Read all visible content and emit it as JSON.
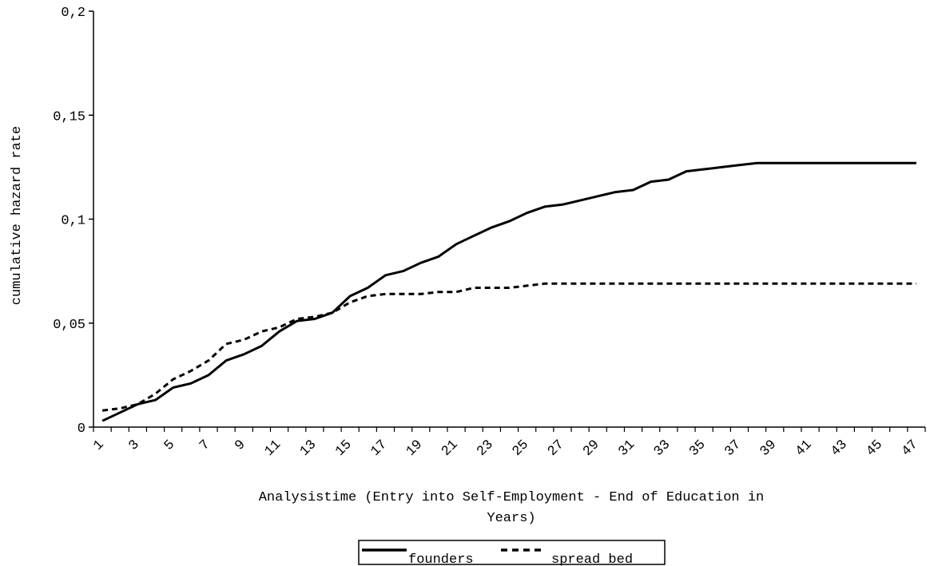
{
  "chart_data": {
    "type": "line",
    "ylabel": "cumulative hazard rate",
    "xlabel_line1": "Analysistime (Entry into Self-Employment - End of Education in",
    "xlabel_line2": "Years)",
    "ylim": [
      0,
      0.2
    ],
    "y_ticks": [
      0,
      0.05,
      0.1,
      0.15,
      0.2
    ],
    "y_tick_labels": [
      "0",
      "0,05",
      "0,1",
      "0,15",
      "0,2"
    ],
    "x": [
      1,
      2,
      3,
      4,
      5,
      6,
      7,
      8,
      9,
      10,
      11,
      12,
      13,
      14,
      15,
      16,
      17,
      18,
      19,
      20,
      21,
      22,
      23,
      24,
      25,
      26,
      27,
      28,
      29,
      30,
      31,
      32,
      33,
      34,
      35,
      36,
      37,
      38,
      39,
      40,
      41,
      42,
      43,
      44,
      45,
      46,
      47
    ],
    "x_tick_labels": [
      "1",
      "3",
      "5",
      "7",
      "9",
      "11",
      "13",
      "15",
      "17",
      "19",
      "21",
      "23",
      "25",
      "27",
      "29",
      "31",
      "33",
      "35",
      "37",
      "39",
      "41",
      "43",
      "45",
      "47"
    ],
    "grid": false,
    "legend_position": "bottom",
    "series": [
      {
        "name": "founders",
        "style": "solid",
        "color": "#000000",
        "values": [
          0.003,
          0.007,
          0.011,
          0.013,
          0.019,
          0.021,
          0.025,
          0.032,
          0.035,
          0.039,
          0.046,
          0.051,
          0.052,
          0.055,
          0.063,
          0.067,
          0.073,
          0.075,
          0.079,
          0.082,
          0.088,
          0.092,
          0.096,
          0.099,
          0.103,
          0.106,
          0.107,
          0.109,
          0.111,
          0.113,
          0.114,
          0.118,
          0.119,
          0.123,
          0.124,
          0.125,
          0.126,
          0.127,
          0.127,
          0.127,
          0.127,
          0.127,
          0.127,
          0.127,
          0.127,
          0.127,
          0.127
        ]
      },
      {
        "name": "spread bed",
        "style": "dashed",
        "color": "#000000",
        "values": [
          0.008,
          0.009,
          0.011,
          0.016,
          0.023,
          0.027,
          0.032,
          0.04,
          0.042,
          0.046,
          0.048,
          0.052,
          0.053,
          0.055,
          0.06,
          0.063,
          0.064,
          0.064,
          0.064,
          0.065,
          0.065,
          0.067,
          0.067,
          0.067,
          0.068,
          0.069,
          0.069,
          0.069,
          0.069,
          0.069,
          0.069,
          0.069,
          0.069,
          0.069,
          0.069,
          0.069,
          0.069,
          0.069,
          0.069,
          0.069,
          0.069,
          0.069,
          0.069,
          0.069,
          0.069,
          0.069,
          0.069
        ]
      }
    ]
  }
}
